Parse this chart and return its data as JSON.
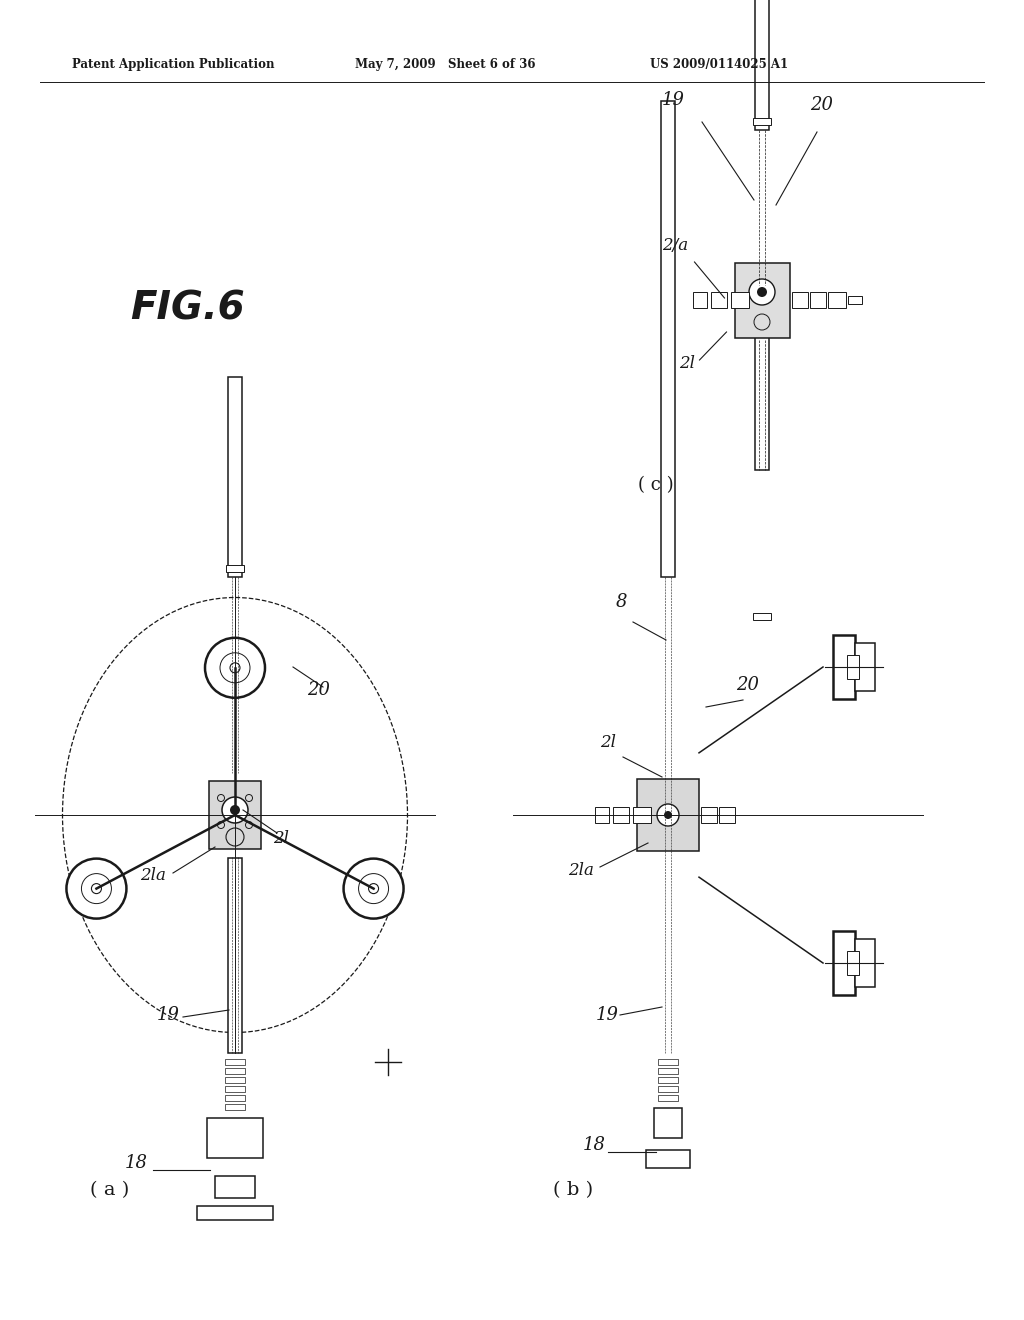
{
  "background": "#ffffff",
  "line_color": "#1a1a1a",
  "header_left": "Patent Application Publication",
  "header_mid": "May 7, 2009   Sheet 6 of 36",
  "header_right": "US 2009/0114025 A1",
  "fig_label": "FIG.6",
  "label_a": "( a )",
  "label_b": "( b )",
  "label_c": "( c )"
}
